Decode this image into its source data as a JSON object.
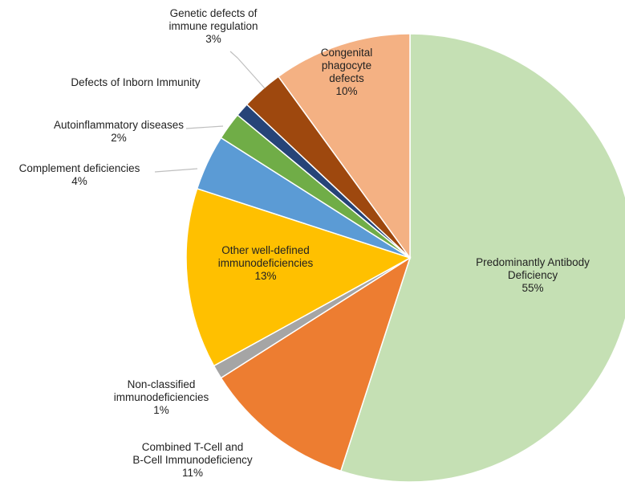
{
  "chart_data": {
    "type": "pie",
    "title": "",
    "slices": [
      {
        "label_lines": [
          "Predominantly Antibody",
          "Deficiency"
        ],
        "pct_text": "55%",
        "value": 55,
        "color": "#c5e0b4"
      },
      {
        "label_lines": [
          "Combined T-Cell and",
          "B-Cell Immunodeficiency"
        ],
        "pct_text": "11%",
        "value": 11,
        "color": "#ed7d31"
      },
      {
        "label_lines": [
          "Non-classified",
          "immunodeficiencies"
        ],
        "pct_text": "1%",
        "value": 1,
        "color": "#a5a5a5"
      },
      {
        "label_lines": [
          "Other well-defined",
          "immunodeficiencies"
        ],
        "pct_text": "13%",
        "value": 13,
        "color": "#ffc000"
      },
      {
        "label_lines": [
          "Complement deficiencies"
        ],
        "pct_text": "4%",
        "value": 4,
        "color": "#5b9bd5"
      },
      {
        "label_lines": [
          "Autoinflammatory diseases"
        ],
        "pct_text": "2%",
        "value": 2,
        "color": "#70ad47"
      },
      {
        "label_lines": [
          "Defects of Inborn Immunity"
        ],
        "pct_text": "",
        "value": 1,
        "color": "#264478"
      },
      {
        "label_lines": [
          "Genetic defects of",
          "immune regulation"
        ],
        "pct_text": "3%",
        "value": 3,
        "color": "#9e480e"
      },
      {
        "label_lines": [
          "Congenital",
          "phagocyte",
          "defects"
        ],
        "pct_text": "10%",
        "value": 10,
        "color": "#f4b183"
      }
    ]
  }
}
